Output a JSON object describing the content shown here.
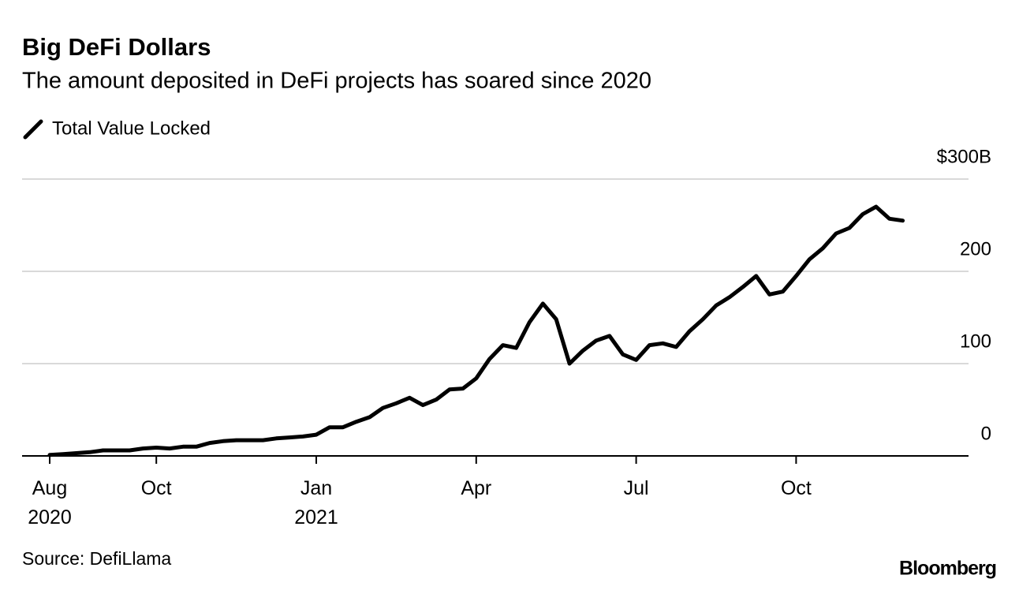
{
  "chart_data": {
    "type": "line",
    "title": "Big DeFi Dollars",
    "subtitle": "The amount deposited in DeFi projects has soared since 2020",
    "source": "Source: DefiLlama",
    "credit": "Bloomberg",
    "categories": [
      "Aug 2020",
      null,
      null,
      null,
      null,
      null,
      null,
      null,
      "Oct",
      null,
      null,
      null,
      null,
      null,
      null,
      null,
      null,
      null,
      null,
      null,
      "Jan 2021",
      null,
      null,
      null,
      null,
      null,
      null,
      null,
      null,
      null,
      null,
      null,
      "Apr",
      null,
      null,
      null,
      null,
      null,
      null,
      null,
      null,
      null,
      null,
      null,
      "Jul",
      null,
      null,
      null,
      null,
      null,
      null,
      null,
      null,
      null,
      null,
      null,
      "Oct",
      null,
      null,
      null,
      null,
      null,
      null,
      null,
      null
    ],
    "series": [
      {
        "name": "Total Value Locked",
        "color": "#000000",
        "values": [
          1,
          2,
          3,
          4,
          6,
          6,
          6,
          8,
          9,
          8,
          10,
          10,
          14,
          16,
          17,
          17,
          17,
          19,
          20,
          21,
          23,
          31,
          31,
          37,
          42,
          52,
          57,
          63,
          55,
          61,
          72,
          73,
          84,
          105,
          120,
          117,
          145,
          165,
          148,
          100,
          114,
          125,
          130,
          110,
          104,
          120,
          122,
          118,
          135,
          148,
          163,
          172,
          183,
          195,
          175,
          178,
          195,
          213,
          225,
          241,
          247,
          262,
          270,
          257,
          255
        ]
      }
    ],
    "ylim": [
      0,
      300
    ],
    "yticks": [
      0,
      100,
      200,
      {
        "value": 300,
        "label": "$300B"
      }
    ],
    "grid": true
  }
}
